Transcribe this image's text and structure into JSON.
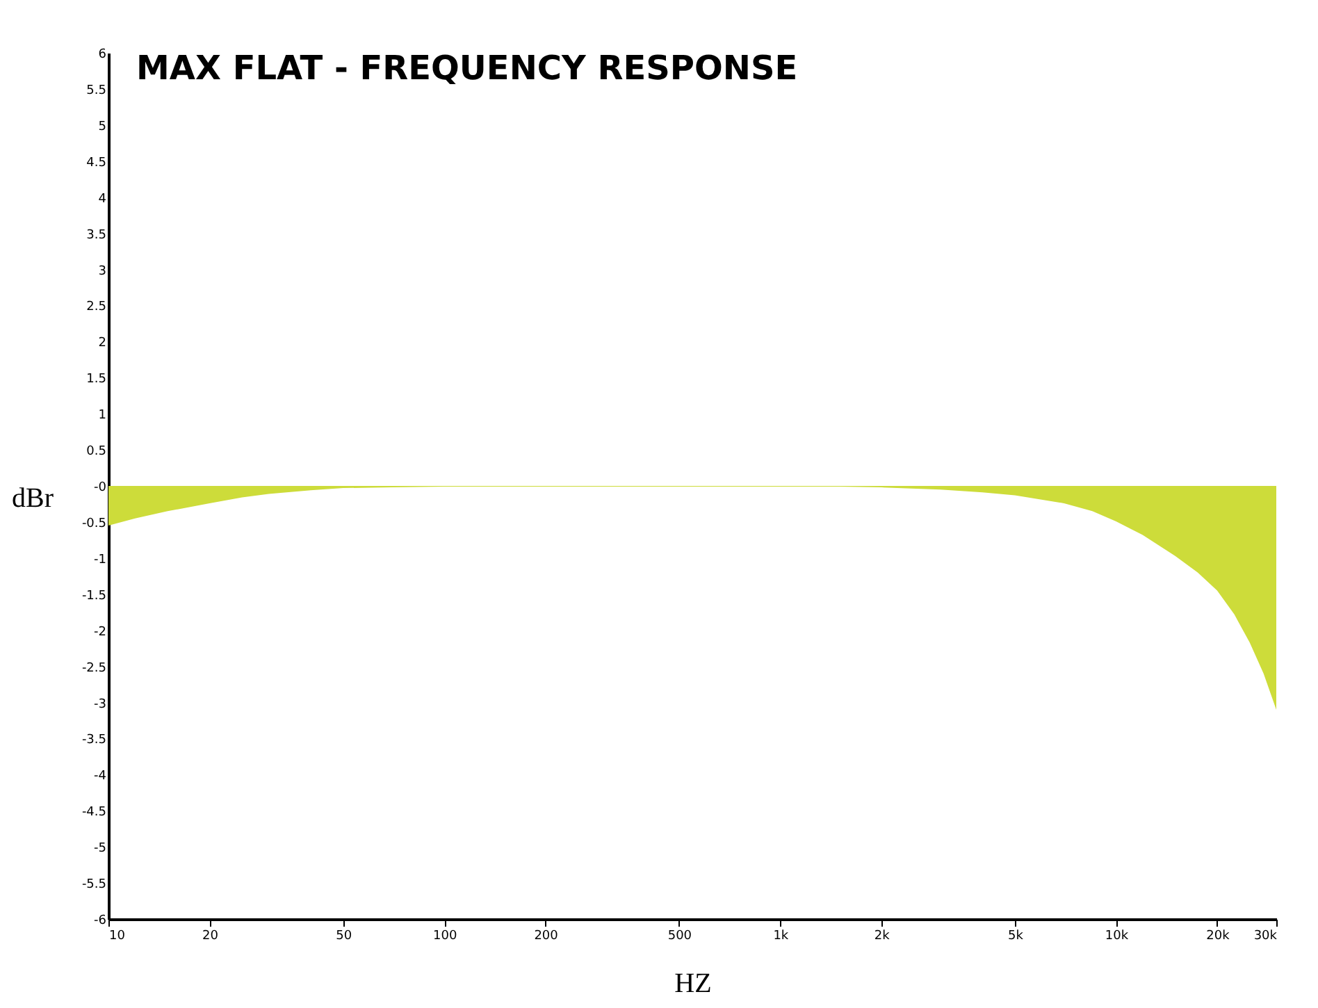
{
  "chart_data": {
    "type": "area",
    "title": "MAX FLAT - FREQUENCY RESPONSE",
    "xlabel": "HZ",
    "ylabel": "dBr",
    "log": "x",
    "x": [
      10,
      12,
      15,
      20,
      25,
      30,
      40,
      50,
      70,
      100,
      150,
      200,
      300,
      500,
      700,
      1000,
      1500,
      2000,
      3000,
      4000,
      5000,
      7000,
      8500,
      10000,
      12000,
      15000,
      17500,
      20000,
      22500,
      25000,
      27500,
      30000
    ],
    "series": [
      {
        "color": "#cddc3a",
        "values": [
          -0.55,
          -0.45,
          -0.35,
          -0.24,
          -0.16,
          -0.11,
          -0.06,
          -0.03,
          -0.02,
          -0.01,
          -0.01,
          -0.01,
          -0.01,
          -0.01,
          -0.01,
          -0.01,
          -0.01,
          -0.02,
          -0.05,
          -0.09,
          -0.13,
          -0.24,
          -0.35,
          -0.49,
          -0.68,
          -0.97,
          -1.2,
          -1.45,
          -1.78,
          -2.17,
          -2.6,
          -3.1
        ]
      }
    ],
    "xlim": [
      10,
      30000
    ],
    "ylim": [
      -6,
      6
    ],
    "xticks": [
      10,
      20,
      50,
      100,
      200,
      500,
      {
        "value": 1000,
        "label": "1k"
      },
      {
        "value": 2000,
        "label": "2k"
      },
      {
        "value": 5000,
        "label": "5k"
      },
      {
        "value": 10000,
        "label": "10k"
      },
      {
        "value": 20000,
        "label": "20k"
      },
      {
        "value": 30000,
        "label": "30k"
      }
    ],
    "yticks": [
      -6,
      -5.5,
      -5,
      -4.5,
      -4,
      -3.5,
      -3,
      -2.5,
      -2,
      -1.5,
      -1,
      -0.5,
      {
        "value": 0,
        "label": "-0"
      },
      0.5,
      1,
      1.5,
      2,
      2.5,
      3,
      3.5,
      4,
      4.5,
      5,
      5.5,
      6
    ],
    "grid": false
  }
}
